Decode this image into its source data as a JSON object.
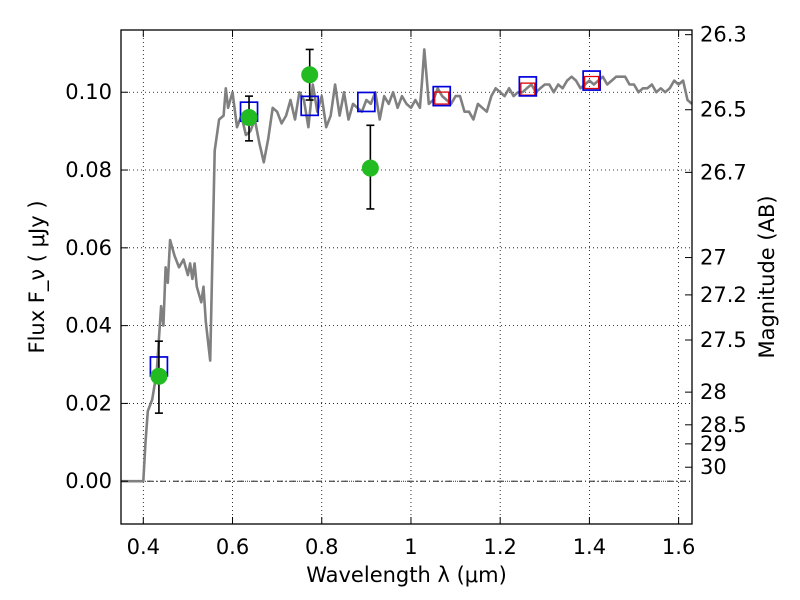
{
  "chart_data": {
    "type": "scatter",
    "xlabel": "Wavelength  λ (μm)",
    "ylabel": "Flux  F_ν  ( μJy )",
    "ylabel_right": "Magnitude (AB)",
    "xlim": [
      0.35,
      1.63
    ],
    "ylim": [
      -0.011,
      0.116
    ],
    "x_ticks": [
      0.4,
      0.6,
      0.8,
      1.0,
      1.2,
      1.4,
      1.6
    ],
    "x_tick_labels": [
      "0.4",
      "0.6",
      "0.8",
      "1",
      "1.2",
      "1.4",
      "1.6"
    ],
    "y_ticks": [
      0.0,
      0.02,
      0.04,
      0.06,
      0.08,
      0.1
    ],
    "y_tick_labels": [
      "0.00",
      "0.02",
      "0.04",
      "0.06",
      "0.08",
      "0.10"
    ],
    "right_ticks": [
      {
        "label": "26.3",
        "flux": 0.1148
      },
      {
        "label": "26.5",
        "flux": 0.0955
      },
      {
        "label": "26.7",
        "flux": 0.0794
      },
      {
        "label": "27",
        "flux": 0.0575
      },
      {
        "label": "27.2",
        "flux": 0.0479
      },
      {
        "label": "27.5",
        "flux": 0.0363
      },
      {
        "label": "28",
        "flux": 0.0229
      },
      {
        "label": "28.5",
        "flux": 0.0145
      },
      {
        "label": "29",
        "flux": 0.0096
      },
      {
        "label": "30",
        "flux": 0.0036
      }
    ],
    "grid": true,
    "zero_line": true,
    "colors": {
      "model": "#808080",
      "observed": "#22bb22",
      "model_box": "#0000dd",
      "model_box_inner": "#dd0000",
      "errorbar": "#000000"
    },
    "series": [
      {
        "type": "line",
        "x": [
          0.35,
          0.4,
          0.405,
          0.41,
          0.42,
          0.43,
          0.44,
          0.445,
          0.45,
          0.455,
          0.46,
          0.47,
          0.48,
          0.49,
          0.5,
          0.505,
          0.51,
          0.515,
          0.52,
          0.53,
          0.535,
          0.54,
          0.55,
          0.56,
          0.57,
          0.58,
          0.585,
          0.59,
          0.6,
          0.61,
          0.62,
          0.63,
          0.64,
          0.65,
          0.66,
          0.67,
          0.68,
          0.69,
          0.7,
          0.71,
          0.72,
          0.73,
          0.74,
          0.75,
          0.76,
          0.77,
          0.78,
          0.79,
          0.8,
          0.81,
          0.82,
          0.83,
          0.84,
          0.85,
          0.86,
          0.87,
          0.88,
          0.89,
          0.9,
          0.91,
          0.92,
          0.93,
          0.94,
          0.95,
          0.96,
          0.97,
          0.98,
          0.99,
          1.0,
          1.01,
          1.02,
          1.025,
          1.03,
          1.035,
          1.04,
          1.05,
          1.06,
          1.07,
          1.08,
          1.09,
          1.1,
          1.11,
          1.12,
          1.13,
          1.14,
          1.15,
          1.16,
          1.17,
          1.18,
          1.19,
          1.2,
          1.21,
          1.22,
          1.23,
          1.24,
          1.25,
          1.26,
          1.27,
          1.28,
          1.29,
          1.3,
          1.31,
          1.32,
          1.33,
          1.34,
          1.35,
          1.36,
          1.37,
          1.38,
          1.39,
          1.4,
          1.41,
          1.42,
          1.43,
          1.44,
          1.45,
          1.46,
          1.47,
          1.48,
          1.49,
          1.5,
          1.51,
          1.52,
          1.53,
          1.54,
          1.55,
          1.56,
          1.57,
          1.58,
          1.59,
          1.6,
          1.61,
          1.62,
          1.63
        ],
        "y": [
          0.0,
          0.0,
          0.01,
          0.018,
          0.021,
          0.028,
          0.045,
          0.04,
          0.055,
          0.051,
          0.062,
          0.058,
          0.055,
          0.057,
          0.053,
          0.056,
          0.052,
          0.056,
          0.05,
          0.046,
          0.05,
          0.041,
          0.031,
          0.085,
          0.093,
          0.094,
          0.101,
          0.096,
          0.1,
          0.091,
          0.094,
          0.089,
          0.09,
          0.093,
          0.087,
          0.082,
          0.088,
          0.096,
          0.095,
          0.092,
          0.094,
          0.098,
          0.093,
          0.1,
          0.098,
          0.091,
          0.102,
          0.095,
          0.099,
          0.091,
          0.094,
          0.102,
          0.094,
          0.1,
          0.093,
          0.097,
          0.096,
          0.095,
          0.098,
          0.097,
          0.1,
          0.093,
          0.099,
          0.097,
          0.1,
          0.096,
          0.099,
          0.097,
          0.096,
          0.098,
          0.096,
          0.103,
          0.111,
          0.104,
          0.097,
          0.098,
          0.101,
          0.099,
          0.098,
          0.097,
          0.099,
          0.099,
          0.095,
          0.095,
          0.093,
          0.097,
          0.096,
          0.095,
          0.099,
          0.101,
          0.1,
          0.099,
          0.101,
          0.099,
          0.1,
          0.1,
          0.101,
          0.102,
          0.1,
          0.101,
          0.102,
          0.102,
          0.1,
          0.102,
          0.101,
          0.103,
          0.104,
          0.103,
          0.101,
          0.102,
          0.103,
          0.102,
          0.103,
          0.104,
          0.102,
          0.103,
          0.104,
          0.104,
          0.104,
          0.102,
          0.102,
          0.1,
          0.101,
          0.101,
          0.102,
          0.1,
          0.101,
          0.1,
          0.101,
          0.103,
          0.102,
          0.103,
          0.098,
          0.097
        ]
      },
      {
        "type": "observed",
        "points": [
          {
            "x": 0.435,
            "y": 0.027,
            "yerr_low": 0.0095,
            "yerr_high": 0.009
          },
          {
            "x": 0.637,
            "y": 0.0935,
            "yerr_low": 0.006,
            "yerr_high": 0.0055
          },
          {
            "x": 0.773,
            "y": 0.1045,
            "yerr_low": 0.0065,
            "yerr_high": 0.0065
          },
          {
            "x": 0.909,
            "y": 0.0805,
            "yerr_low": 0.0105,
            "yerr_high": 0.011
          }
        ]
      },
      {
        "type": "model_boxes",
        "points": [
          {
            "x": 0.435,
            "y": 0.0295
          },
          {
            "x": 0.637,
            "y": 0.095
          },
          {
            "x": 0.773,
            "y": 0.0965
          },
          {
            "x": 0.9,
            "y": 0.0975
          },
          {
            "x": 1.069,
            "y": 0.099
          },
          {
            "x": 1.262,
            "y": 0.1015
          },
          {
            "x": 1.405,
            "y": 0.103
          }
        ]
      },
      {
        "type": "model_box_inner",
        "points": [
          {
            "x": 1.069,
            "y": 0.0985
          },
          {
            "x": 1.262,
            "y": 0.1008
          },
          {
            "x": 1.405,
            "y": 0.1025
          }
        ]
      }
    ]
  }
}
